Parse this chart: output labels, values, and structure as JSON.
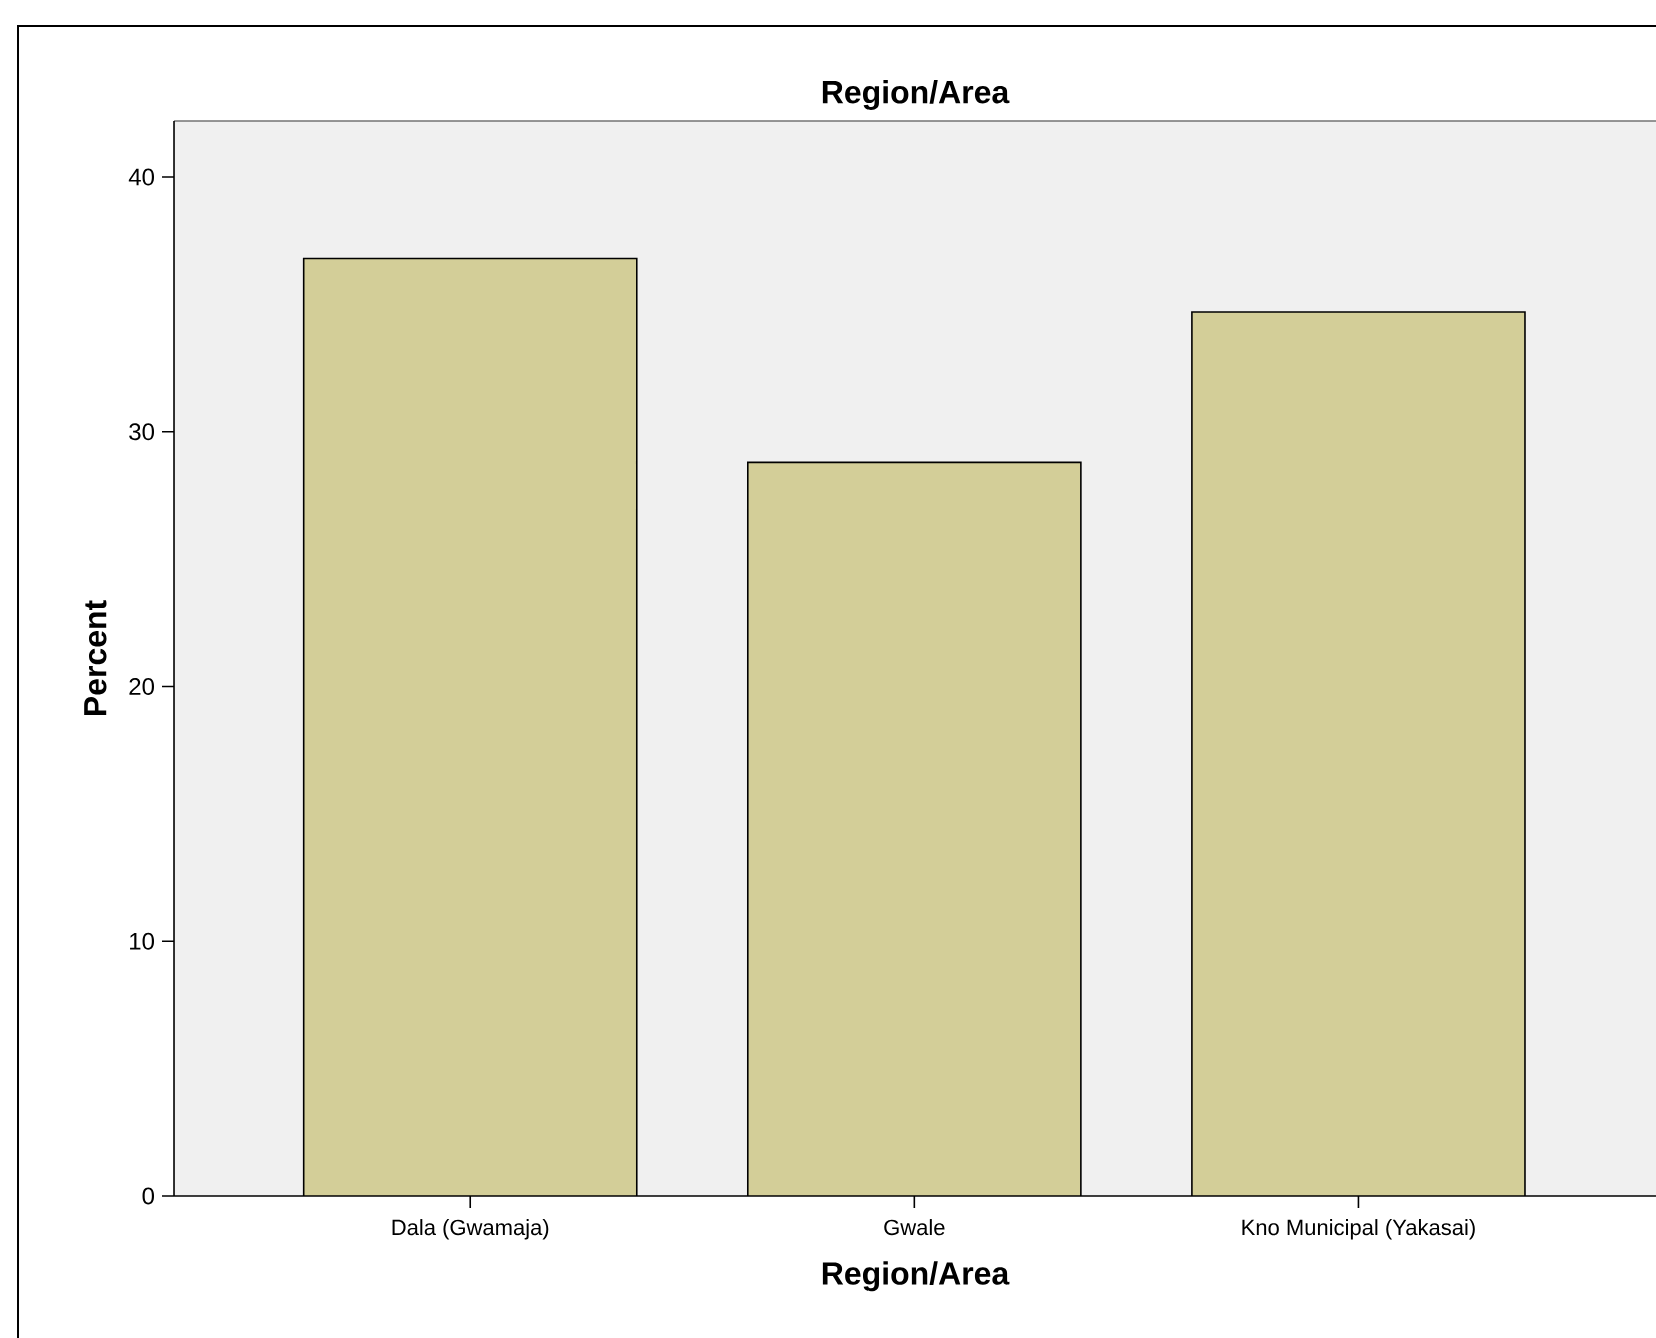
{
  "chart_data": {
    "type": "bar",
    "title": "Region/Area",
    "xlabel": "Region/Area",
    "ylabel": "Percent",
    "categories": [
      "Dala (Gwamaja)",
      "Gwale",
      "Kno Municipal (Yakasai)"
    ],
    "values": [
      36.8,
      28.8,
      34.7
    ],
    "color": "#d3ce98",
    "ylim": [
      0,
      42.2
    ],
    "yticks": [
      0,
      10,
      20,
      30,
      40
    ]
  }
}
